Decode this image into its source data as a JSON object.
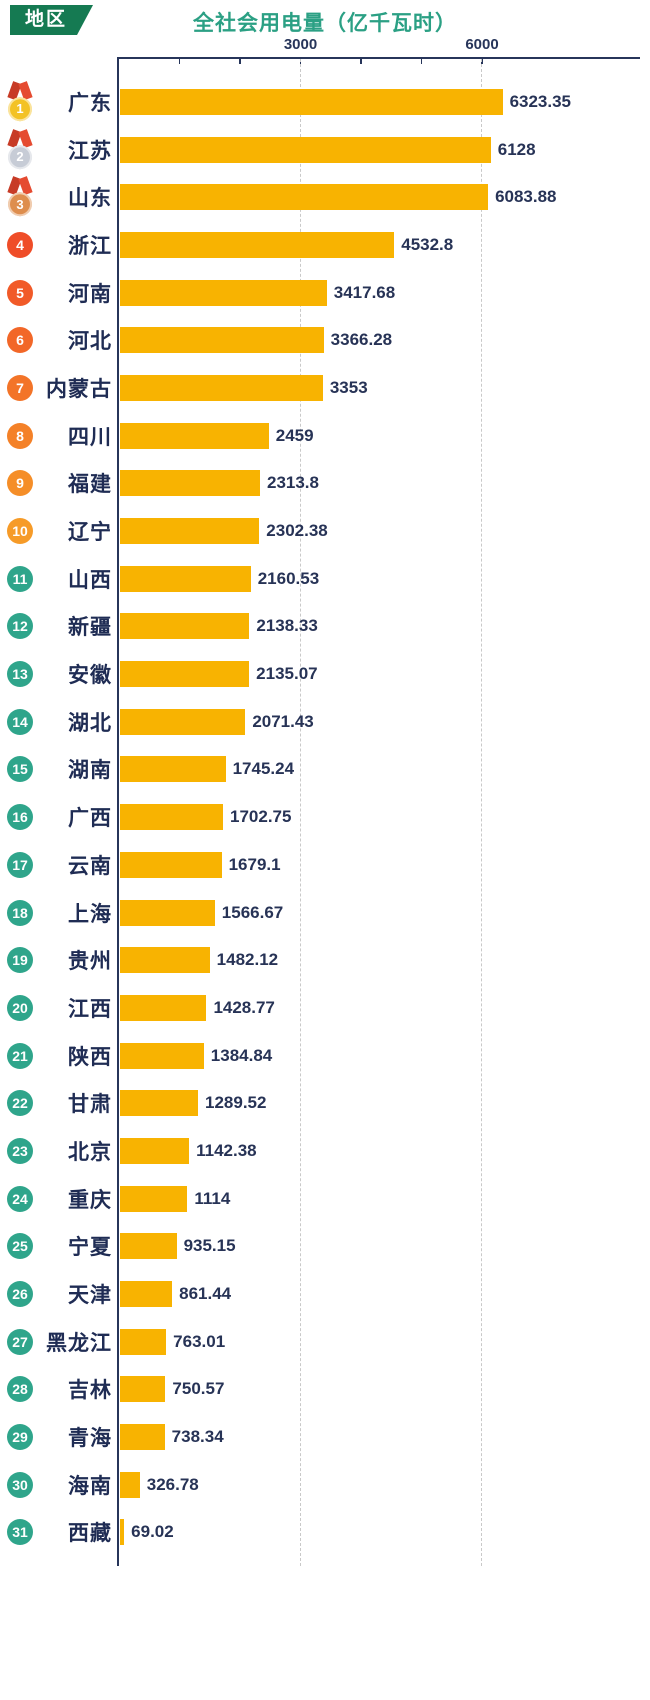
{
  "header": {
    "region_badge": "地区",
    "title": "全社会用电量（亿千瓦时）"
  },
  "colors": {
    "bar": "#F8B301",
    "title": "#2BA084",
    "badge_bg": "#157A52",
    "axis": "#27355A",
    "province_text": "#1F2C54",
    "value_text": "#273356",
    "gridline": "#C9C9C9",
    "rank_teal": "#2FA58B",
    "ribbon_red": "#E54B31",
    "ribbon_red_dark": "#C73B26"
  },
  "chart_data": {
    "type": "bar",
    "orientation": "horizontal",
    "title": "全社会用电量（亿千瓦时）",
    "xlabel": "全社会用电量（亿千瓦时）",
    "ylabel": "地区",
    "xlim": [
      0,
      6600
    ],
    "grid": "dashed vertical at labeled ticks",
    "x_axis": {
      "ticks": [
        {
          "value": 3000,
          "label": "3000"
        },
        {
          "value": 6000,
          "label": "6000"
        }
      ],
      "minor_tick_step": 1000
    },
    "categories": [
      "广东",
      "江苏",
      "山东",
      "浙江",
      "河南",
      "河北",
      "内蒙古",
      "四川",
      "福建",
      "辽宁",
      "山西",
      "新疆",
      "安徽",
      "湖北",
      "湖南",
      "广西",
      "云南",
      "上海",
      "贵州",
      "江西",
      "陕西",
      "甘肃",
      "北京",
      "重庆",
      "宁夏",
      "天津",
      "黑龙江",
      "吉林",
      "青海",
      "海南",
      "西藏"
    ],
    "values": [
      6323.35,
      6128,
      6083.88,
      4532.8,
      3417.68,
      3366.28,
      3353,
      2459,
      2313.8,
      2302.38,
      2160.53,
      2138.33,
      2135.07,
      2071.43,
      1745.24,
      1702.75,
      1679.1,
      1566.67,
      1482.12,
      1428.77,
      1384.84,
      1289.52,
      1142.38,
      1114,
      935.15,
      861.44,
      763.01,
      750.57,
      738.34,
      326.78,
      69.02
    ],
    "rows": [
      {
        "rank": 1,
        "name": "广东",
        "value": 6323.35,
        "label": "6323.35",
        "badge": "medal",
        "badge_color": "#F3C225"
      },
      {
        "rank": 2,
        "name": "江苏",
        "value": 6128,
        "label": "6128",
        "badge": "medal",
        "badge_color": "#C7CCD6"
      },
      {
        "rank": 3,
        "name": "山东",
        "value": 6083.88,
        "label": "6083.88",
        "badge": "medal",
        "badge_color": "#DE8E4E"
      },
      {
        "rank": 4,
        "name": "浙江",
        "value": 4532.8,
        "label": "4532.8",
        "badge": "circle",
        "badge_color": "#EF4D28"
      },
      {
        "rank": 5,
        "name": "河南",
        "value": 3417.68,
        "label": "3417.68",
        "badge": "circle",
        "badge_color": "#F15A28"
      },
      {
        "rank": 6,
        "name": "河北",
        "value": 3366.28,
        "label": "3366.28",
        "badge": "circle",
        "badge_color": "#F26728"
      },
      {
        "rank": 7,
        "name": "内蒙古",
        "value": 3353,
        "label": "3353",
        "badge": "circle",
        "badge_color": "#F37428"
      },
      {
        "rank": 8,
        "name": "四川",
        "value": 2459,
        "label": "2459",
        "badge": "circle",
        "badge_color": "#F48128"
      },
      {
        "rank": 9,
        "name": "福建",
        "value": 2313.8,
        "label": "2313.8",
        "badge": "circle",
        "badge_color": "#F58E28"
      },
      {
        "rank": 10,
        "name": "辽宁",
        "value": 2302.38,
        "label": "2302.38",
        "badge": "circle",
        "badge_color": "#F69B28"
      },
      {
        "rank": 11,
        "name": "山西",
        "value": 2160.53,
        "label": "2160.53",
        "badge": "circle",
        "badge_color": "#2FA58B"
      },
      {
        "rank": 12,
        "name": "新疆",
        "value": 2138.33,
        "label": "2138.33",
        "badge": "circle",
        "badge_color": "#2FA58B"
      },
      {
        "rank": 13,
        "name": "安徽",
        "value": 2135.07,
        "label": "2135.07",
        "badge": "circle",
        "badge_color": "#2FA58B"
      },
      {
        "rank": 14,
        "name": "湖北",
        "value": 2071.43,
        "label": "2071.43",
        "badge": "circle",
        "badge_color": "#2FA58B"
      },
      {
        "rank": 15,
        "name": "湖南",
        "value": 1745.24,
        "label": "1745.24",
        "badge": "circle",
        "badge_color": "#2FA58B"
      },
      {
        "rank": 16,
        "name": "广西",
        "value": 1702.75,
        "label": "1702.75",
        "badge": "circle",
        "badge_color": "#2FA58B"
      },
      {
        "rank": 17,
        "name": "云南",
        "value": 1679.1,
        "label": "1679.1",
        "badge": "circle",
        "badge_color": "#2FA58B"
      },
      {
        "rank": 18,
        "name": "上海",
        "value": 1566.67,
        "label": "1566.67",
        "badge": "circle",
        "badge_color": "#2FA58B"
      },
      {
        "rank": 19,
        "name": "贵州",
        "value": 1482.12,
        "label": "1482.12",
        "badge": "circle",
        "badge_color": "#2FA58B"
      },
      {
        "rank": 20,
        "name": "江西",
        "value": 1428.77,
        "label": "1428.77",
        "badge": "circle",
        "badge_color": "#2FA58B"
      },
      {
        "rank": 21,
        "name": "陕西",
        "value": 1384.84,
        "label": "1384.84",
        "badge": "circle",
        "badge_color": "#2FA58B"
      },
      {
        "rank": 22,
        "name": "甘肃",
        "value": 1289.52,
        "label": "1289.52",
        "badge": "circle",
        "badge_color": "#2FA58B"
      },
      {
        "rank": 23,
        "name": "北京",
        "value": 1142.38,
        "label": "1142.38",
        "badge": "circle",
        "badge_color": "#2FA58B"
      },
      {
        "rank": 24,
        "name": "重庆",
        "value": 1114,
        "label": "1114",
        "badge": "circle",
        "badge_color": "#2FA58B"
      },
      {
        "rank": 25,
        "name": "宁夏",
        "value": 935.15,
        "label": "935.15",
        "badge": "circle",
        "badge_color": "#2FA58B"
      },
      {
        "rank": 26,
        "name": "天津",
        "value": 861.44,
        "label": "861.44",
        "badge": "circle",
        "badge_color": "#2FA58B"
      },
      {
        "rank": 27,
        "name": "黑龙江",
        "value": 763.01,
        "label": "763.01",
        "badge": "circle",
        "badge_color": "#2FA58B"
      },
      {
        "rank": 28,
        "name": "吉林",
        "value": 750.57,
        "label": "750.57",
        "badge": "circle",
        "badge_color": "#2FA58B"
      },
      {
        "rank": 29,
        "name": "青海",
        "value": 738.34,
        "label": "738.34",
        "badge": "circle",
        "badge_color": "#2FA58B"
      },
      {
        "rank": 30,
        "name": "海南",
        "value": 326.78,
        "label": "326.78",
        "badge": "circle",
        "badge_color": "#2FA58B"
      },
      {
        "rank": 31,
        "name": "西藏",
        "value": 69.02,
        "label": "69.02",
        "badge": "circle",
        "badge_color": "#2FA58B"
      }
    ]
  }
}
